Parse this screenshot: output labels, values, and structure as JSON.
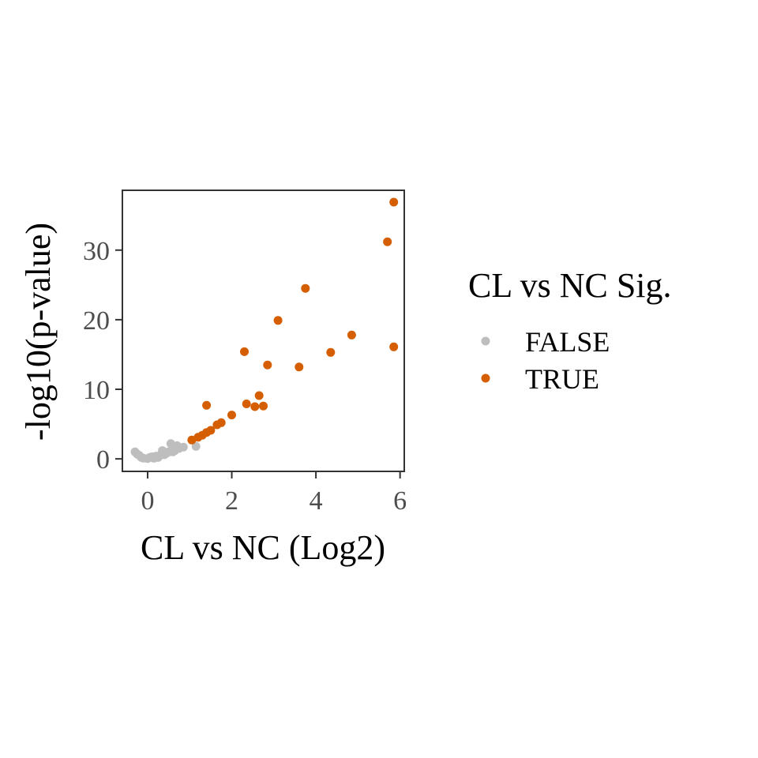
{
  "chart_data": {
    "type": "scatter",
    "title": "",
    "xlabel": "CL vs NC (Log2)",
    "ylabel": "-log10(p-value)",
    "xlim": [
      -0.6,
      6.1
    ],
    "ylim": [
      -1.8,
      38.6
    ],
    "xticks": [
      0,
      2,
      4,
      6
    ],
    "xtick_labels": [
      "0",
      "2",
      "4",
      "6"
    ],
    "yticks": [
      0,
      10,
      20,
      30
    ],
    "ytick_labels": [
      "0",
      "10",
      "20",
      "30"
    ],
    "grid": false,
    "legend": {
      "title": "CL vs NC Sig.",
      "position": "right",
      "entries": [
        {
          "label": "FALSE",
          "color": "#bebebe"
        },
        {
          "label": "TRUE",
          "color": "#d55e00"
        }
      ]
    },
    "series": [
      {
        "name": "FALSE",
        "color": "#bebebe",
        "points": [
          {
            "x": -0.3,
            "y": 1.0
          },
          {
            "x": -0.25,
            "y": 0.7
          },
          {
            "x": -0.2,
            "y": 0.5
          },
          {
            "x": -0.15,
            "y": 0.2
          },
          {
            "x": -0.1,
            "y": 0.1
          },
          {
            "x": 0.0,
            "y": 0.05
          },
          {
            "x": 0.05,
            "y": 0.2
          },
          {
            "x": 0.1,
            "y": 0.3
          },
          {
            "x": 0.15,
            "y": 0.1
          },
          {
            "x": 0.2,
            "y": 0.4
          },
          {
            "x": 0.25,
            "y": 0.2
          },
          {
            "x": 0.3,
            "y": 0.5
          },
          {
            "x": 0.35,
            "y": 1.2
          },
          {
            "x": 0.4,
            "y": 0.6
          },
          {
            "x": 0.45,
            "y": 0.8
          },
          {
            "x": 0.5,
            "y": 1.0
          },
          {
            "x": 0.55,
            "y": 2.2
          },
          {
            "x": 0.6,
            "y": 1.0
          },
          {
            "x": 0.65,
            "y": 1.2
          },
          {
            "x": 0.7,
            "y": 1.9
          },
          {
            "x": 0.75,
            "y": 1.5
          },
          {
            "x": 0.85,
            "y": 1.7
          },
          {
            "x": 1.15,
            "y": 1.8
          }
        ]
      },
      {
        "name": "TRUE",
        "color": "#d55e00",
        "points": [
          {
            "x": 1.05,
            "y": 2.7
          },
          {
            "x": 1.2,
            "y": 3.1
          },
          {
            "x": 1.3,
            "y": 3.4
          },
          {
            "x": 1.4,
            "y": 3.8
          },
          {
            "x": 1.5,
            "y": 4.1
          },
          {
            "x": 1.65,
            "y": 4.9
          },
          {
            "x": 1.75,
            "y": 5.2
          },
          {
            "x": 2.0,
            "y": 6.3
          },
          {
            "x": 1.4,
            "y": 7.7
          },
          {
            "x": 2.35,
            "y": 7.9
          },
          {
            "x": 2.55,
            "y": 7.5
          },
          {
            "x": 2.75,
            "y": 7.6
          },
          {
            "x": 2.65,
            "y": 9.1
          },
          {
            "x": 2.85,
            "y": 13.5
          },
          {
            "x": 2.3,
            "y": 15.4
          },
          {
            "x": 3.6,
            "y": 13.2
          },
          {
            "x": 3.1,
            "y": 19.9
          },
          {
            "x": 3.75,
            "y": 24.5
          },
          {
            "x": 4.35,
            "y": 15.3
          },
          {
            "x": 4.85,
            "y": 17.8
          },
          {
            "x": 5.7,
            "y": 31.2
          },
          {
            "x": 5.85,
            "y": 36.9
          },
          {
            "x": 5.85,
            "y": 16.1
          }
        ]
      }
    ]
  }
}
